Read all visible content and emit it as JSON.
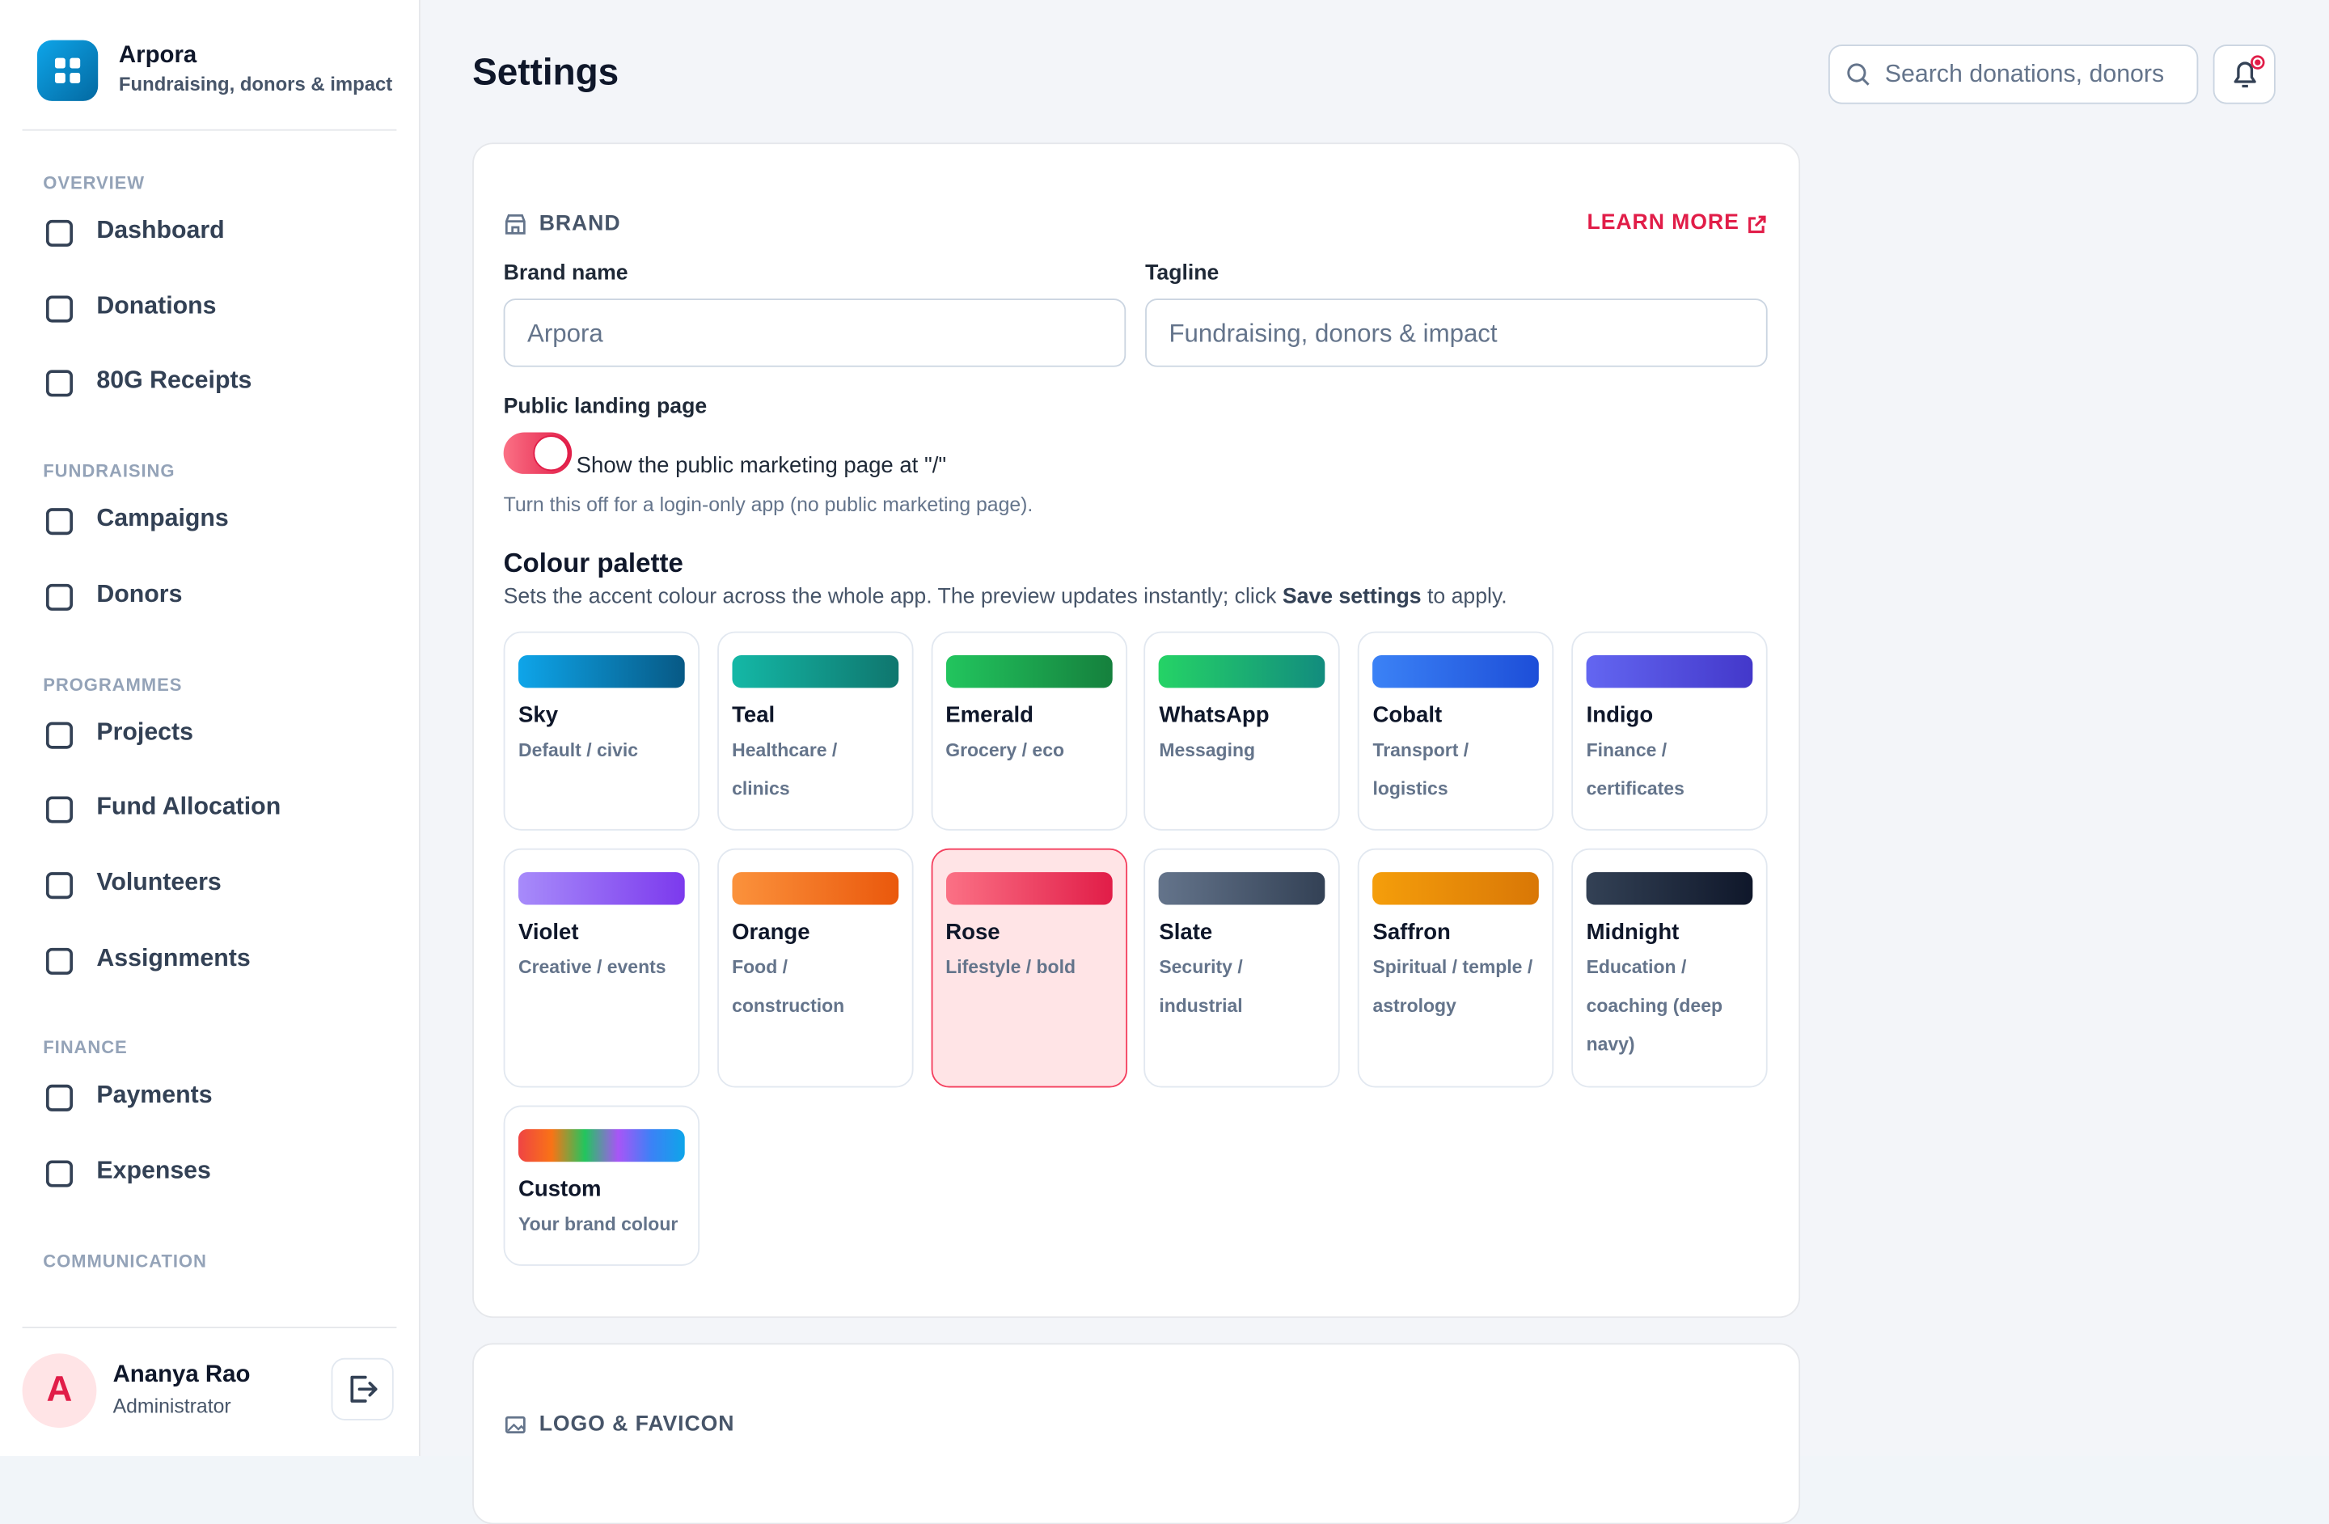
{
  "sidebar": {
    "app_name": "Arpora",
    "app_tagline": "Fundraising, donors & impact",
    "sections": [
      {
        "title": "OVERVIEW",
        "items": [
          "Dashboard",
          "Donations",
          "80G Receipts"
        ]
      },
      {
        "title": "FUNDRAISING",
        "items": [
          "Campaigns",
          "Donors"
        ]
      },
      {
        "title": "PROGRAMMES",
        "items": [
          "Projects",
          "Fund Allocation",
          "Volunteers",
          "Assignments"
        ]
      },
      {
        "title": "FINANCE",
        "items": [
          "Payments",
          "Expenses"
        ]
      },
      {
        "title": "COMMUNICATION",
        "items": []
      }
    ],
    "user": {
      "initial": "A",
      "name": "Ananya Rao",
      "role": "Administrator"
    }
  },
  "header": {
    "title": "Settings",
    "search_placeholder": "Search donations, donors"
  },
  "brand_section": {
    "title": "BRAND",
    "link": "LEARN MORE",
    "brand_name_label": "Brand name",
    "brand_name_value": "Arpora",
    "tagline_label": "Tagline",
    "tagline_value": "Fundraising, donors & impact",
    "landing_label": "Public landing page",
    "toggle_label": "Show the public marketing page at \"/\"",
    "toggle_on": true,
    "toggle_help": "Turn this off for a login-only app (no public marketing page).",
    "palette_title": "Colour palette",
    "palette_desc_before": "Sets the accent colour across the whole app. The preview updates instantly; click ",
    "palette_desc_bold": "Save settings",
    "palette_desc_after": " to apply.",
    "selected": 8,
    "palettes": [
      {
        "name": "Sky",
        "desc": "Default / civic",
        "colors": [
          "#0ea5e9",
          "#075985"
        ]
      },
      {
        "name": "Teal",
        "desc": "Healthcare / clinics",
        "colors": [
          "#14b8a6",
          "#0f766e"
        ]
      },
      {
        "name": "Emerald",
        "desc": "Grocery / eco",
        "colors": [
          "#22c55e",
          "#15803d"
        ]
      },
      {
        "name": "WhatsApp",
        "desc": "Messaging",
        "colors": [
          "#25d366",
          "#128c7e"
        ]
      },
      {
        "name": "Cobalt",
        "desc": "Transport / logistics",
        "colors": [
          "#3b82f6",
          "#1d4ed8"
        ]
      },
      {
        "name": "Indigo",
        "desc": "Finance / certificates",
        "colors": [
          "#6366f1",
          "#4338ca"
        ]
      },
      {
        "name": "Violet",
        "desc": "Creative / events",
        "colors": [
          "#a78bfa",
          "#7c3aed"
        ]
      },
      {
        "name": "Orange",
        "desc": "Food / construction",
        "colors": [
          "#fb923c",
          "#ea580c"
        ]
      },
      {
        "name": "Rose",
        "desc": "Lifestyle / bold",
        "colors": [
          "#fb7185",
          "#e11d48"
        ]
      },
      {
        "name": "Slate",
        "desc": "Security / industrial",
        "colors": [
          "#64748b",
          "#334155"
        ]
      },
      {
        "name": "Saffron",
        "desc": "Spiritual / temple / astrology",
        "colors": [
          "#f59e0b",
          "#d97706"
        ]
      },
      {
        "name": "Midnight",
        "desc": "Education / coaching (deep navy)",
        "colors": [
          "#334155",
          "#0f172a"
        ]
      },
      {
        "name": "Custom",
        "desc": "Your brand colour",
        "colors": [
          "#ef4444",
          "#f97316",
          "#22c55e",
          "#a855f7",
          "#3b82f6",
          "#0ea5e9"
        ]
      }
    ]
  },
  "logo_section": {
    "title": "LOGO & FAVICON"
  }
}
